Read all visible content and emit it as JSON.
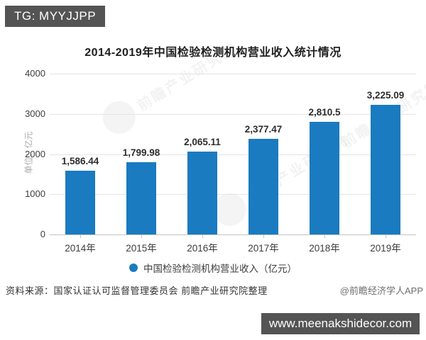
{
  "badge": {
    "text": "TG: MYYJJPP"
  },
  "chart_data": {
    "type": "bar",
    "title": "2014-2019年中国检验检测机构营业收入统计情况",
    "categories": [
      "2014年",
      "2015年",
      "2016年",
      "2017年",
      "2018年",
      "2019年"
    ],
    "values": [
      1586.44,
      1799.98,
      2065.11,
      2377.47,
      2810.5,
      3225.09
    ],
    "value_labels": [
      "1,586.44",
      "1,799.98",
      "2,065.11",
      "2,377.47",
      "2,810.5",
      "3,225.09"
    ],
    "xlabel": "",
    "ylabel": "单位：亿元",
    "ylim": [
      0,
      4000
    ],
    "yticks": [
      0,
      1000,
      2000,
      3000,
      4000
    ],
    "grid": true,
    "legend": {
      "label": "中国检验检测机构营业收入（亿元）",
      "position": "bottom"
    }
  },
  "footer": {
    "source": "资料来源：国家认证认可监督管理委员会 前瞻产业研究院整理",
    "credit": "@前瞻经济学人APP"
  },
  "site_bar": {
    "text": "www.meenakshidecor.com"
  },
  "watermark": {
    "brand": "前瞻",
    "text": "前瞻产业研究院"
  },
  "colors": {
    "bar": "#1a7bc0",
    "badge_bg": "#545454",
    "site_bar_bg": "#545454",
    "grid": "#e4e4e4",
    "axis": "#c2c2c2"
  }
}
